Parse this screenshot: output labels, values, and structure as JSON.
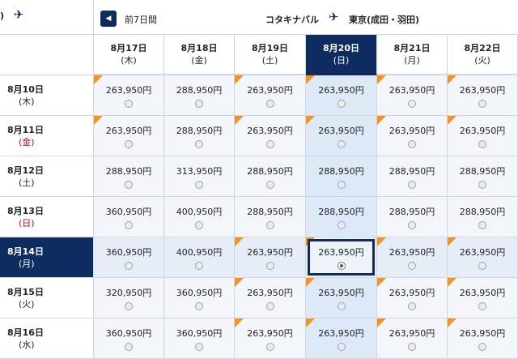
{
  "header": {
    "left_partial": ")",
    "prev_label": "前7日間",
    "origin": "コタキナバル",
    "destination": "東京(成田・羽田)",
    "plane_icon": "✈"
  },
  "columns": [
    {
      "date": "8月17日",
      "dow": "(木)"
    },
    {
      "date": "8月18日",
      "dow": "(金)"
    },
    {
      "date": "8月19日",
      "dow": "(土)"
    },
    {
      "date": "8月20日",
      "dow": "(日)"
    },
    {
      "date": "8月21日",
      "dow": "(月)"
    },
    {
      "date": "8月22日",
      "dow": "(火)"
    }
  ],
  "selected_column": 3,
  "selected_row": 4,
  "rows": [
    {
      "date": "8月10日",
      "dow": "(木)",
      "dow_color": "normal",
      "prices": [
        "263,950円",
        "288,950円",
        "263,950円",
        "263,950円",
        "263,950円",
        "263,950円"
      ],
      "flags": [
        true,
        false,
        true,
        true,
        true,
        true
      ]
    },
    {
      "date": "8月11日",
      "dow": "(金)",
      "dow_color": "red",
      "prices": [
        "263,950円",
        "288,950円",
        "263,950円",
        "263,950円",
        "263,950円",
        "263,950円"
      ],
      "flags": [
        true,
        false,
        true,
        true,
        true,
        true
      ]
    },
    {
      "date": "8月12日",
      "dow": "(土)",
      "dow_color": "normal",
      "prices": [
        "288,950円",
        "313,950円",
        "288,950円",
        "288,950円",
        "288,950円",
        "288,950円"
      ],
      "flags": [
        false,
        false,
        false,
        false,
        false,
        false
      ]
    },
    {
      "date": "8月13日",
      "dow": "(日)",
      "dow_color": "red",
      "prices": [
        "360,950円",
        "400,950円",
        "288,950円",
        "288,950円",
        "288,950円",
        "288,950円"
      ],
      "flags": [
        false,
        false,
        false,
        false,
        false,
        false
      ]
    },
    {
      "date": "8月14日",
      "dow": "(月)",
      "dow_color": "normal",
      "prices": [
        "360,950円",
        "400,950円",
        "263,950円",
        "263,950円",
        "263,950円",
        "263,950円"
      ],
      "flags": [
        false,
        false,
        true,
        true,
        true,
        true
      ]
    },
    {
      "date": "8月15日",
      "dow": "(火)",
      "dow_color": "normal",
      "prices": [
        "320,950円",
        "360,950円",
        "263,950円",
        "263,950円",
        "263,950円",
        "263,950円"
      ],
      "flags": [
        false,
        false,
        true,
        true,
        true,
        true
      ]
    },
    {
      "date": "8月16日",
      "dow": "(水)",
      "dow_color": "normal",
      "prices": [
        "360,950円",
        "360,950円",
        "263,950円",
        "263,950円",
        "263,950円",
        "263,950円"
      ],
      "flags": [
        false,
        false,
        true,
        true,
        true,
        true
      ]
    }
  ],
  "colors": {
    "navy": "#0e2c60",
    "flag": "#f7921e",
    "sunday_red": "#d0021b"
  }
}
